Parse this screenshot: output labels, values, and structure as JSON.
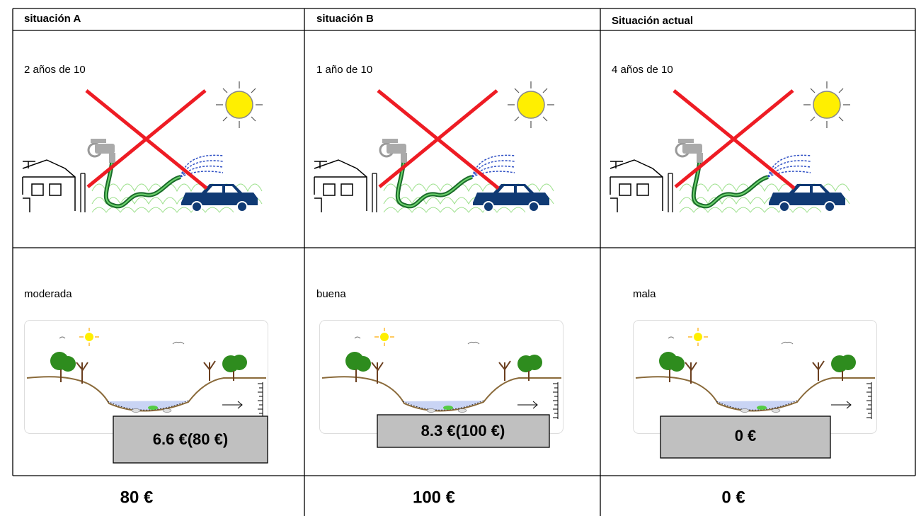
{
  "table": {
    "headers": [
      "situación A",
      "situación B",
      "Situación actual"
    ],
    "frequency": [
      "2 años de 10",
      "1 año de 10",
      "4 años de 10"
    ],
    "status": [
      "moderada",
      "buena",
      "mala"
    ],
    "price_boxes": [
      "6.6 €(80 €)",
      "8.3 €(100 €)",
      "0 €"
    ],
    "prices": [
      "80 €",
      "100 €",
      "0 €"
    ]
  }
}
